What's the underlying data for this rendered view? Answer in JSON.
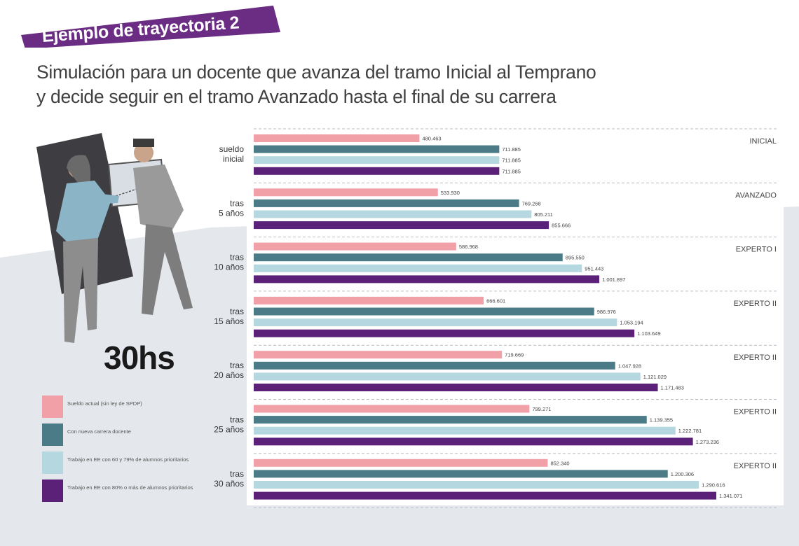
{
  "banner": {
    "text": "Ejemplo de trayectoria 2",
    "color": "#6b2c83"
  },
  "subtitle_lines": [
    "Simulación para un docente que avanza del tramo Inicial al Temprano",
    "y decide seguir en el tramo Avanzado hasta el final de su carrera"
  ],
  "hours_label": "30hs",
  "colors": {
    "pink": "#f2a0a8",
    "teal": "#4a7b87",
    "light_blue": "#b4d7e0",
    "purple": "#5b2179",
    "background_gray": "#e4e7ec",
    "text": "#404040"
  },
  "legend": [
    {
      "label": "Sueldo actual (sin ley de SPDP)",
      "color": "#f2a0a8"
    },
    {
      "label": "Con nueva carrera docente",
      "color": "#4a7b87"
    },
    {
      "label": "Trabajo en EE con 60 y 79% de alumnos prioritarios",
      "color": "#b4d7e0"
    },
    {
      "label": "Trabajo en EE con 80% o más de alumnos prioritarios",
      "color": "#5b2179"
    }
  ],
  "chart_data": {
    "type": "bar",
    "orientation": "horizontal",
    "title": "",
    "xlabel": "",
    "ylabel": "",
    "grid": "dashed separators between groups",
    "legend_position": "bottom-left",
    "xlim": [
      0,
      1341071
    ],
    "categories": [
      [
        "sueldo",
        "inicial"
      ],
      [
        "tras",
        "5 años"
      ],
      [
        "tras",
        "10 años"
      ],
      [
        "tras",
        "15 años"
      ],
      [
        "tras",
        "20 años"
      ],
      [
        "tras",
        "25 años"
      ],
      [
        "tras",
        "30 años"
      ]
    ],
    "tramos": [
      "INICIAL",
      "AVANZADO",
      "EXPERTO I",
      "EXPERTO II",
      "EXPERTO II",
      "EXPERTO II",
      "EXPERTO II"
    ],
    "series": [
      {
        "color": "#f2a0a8",
        "values": [
          480463,
          533930,
          586968,
          666601,
          719669,
          799271,
          852340
        ],
        "labels": [
          "480.463",
          "533.930",
          "586.968",
          "666.601",
          "719.669",
          "799.271",
          "852.340"
        ]
      },
      {
        "color": "#4a7b87",
        "values": [
          711885,
          769268,
          895550,
          986976,
          1047928,
          1139355,
          1200306
        ],
        "labels": [
          "711.885",
          "769.268",
          "895.550",
          "986.976",
          "1.047.928",
          "1.139.355",
          "1.200.306"
        ]
      },
      {
        "color": "#b4d7e0",
        "values": [
          711885,
          805211,
          951443,
          1053194,
          1121029,
          1222781,
          1290616
        ],
        "labels": [
          "711.885",
          "805.211",
          "951.443",
          "1.053.194",
          "1.121.029",
          "1.222.781",
          "1.290.616"
        ]
      },
      {
        "color": "#5b2179",
        "values": [
          711885,
          855666,
          1001897,
          1103649,
          1171483,
          1273236,
          1341071
        ],
        "labels": [
          "711.885",
          "855.666",
          "1.001.897",
          "1.103.649",
          "1.171.483",
          "1.273.236",
          "1.341.071"
        ]
      }
    ]
  }
}
